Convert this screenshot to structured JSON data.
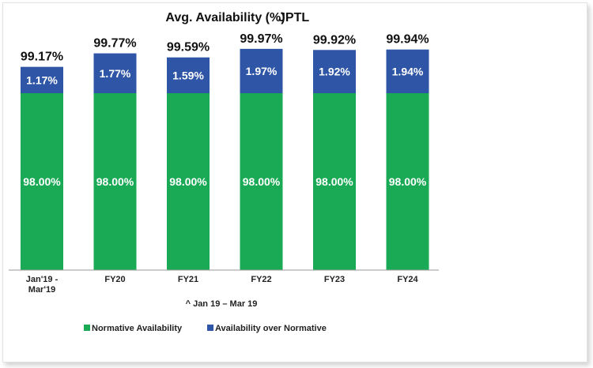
{
  "chart_data": {
    "type": "bar",
    "stacked": true,
    "title": "Avg. Availability (%)",
    "subtitle": "JPTL",
    "categories": [
      [
        "Jan'19 -",
        "Mar'19"
      ],
      [
        "FY20"
      ],
      [
        "FY21"
      ],
      [
        "FY22"
      ],
      [
        "FY23"
      ],
      [
        "FY24"
      ]
    ],
    "series": [
      {
        "name": "Normative Availability",
        "color": "#1aaa55",
        "values": [
          98.0,
          98.0,
          98.0,
          98.0,
          98.0,
          98.0
        ],
        "labels": [
          "98.00%",
          "98.00%",
          "98.00%",
          "98.00%",
          "98.00%",
          "98.00%"
        ]
      },
      {
        "name": "Availability over Normative",
        "color": "#2f56a6",
        "values": [
          1.17,
          1.77,
          1.59,
          1.97,
          1.92,
          1.94
        ],
        "labels": [
          "1.17%",
          "1.77%",
          "1.59%",
          "1.97%",
          "1.92%",
          "1.94%"
        ]
      }
    ],
    "totals": [
      99.17,
      99.77,
      99.59,
      99.97,
      99.92,
      99.94
    ],
    "total_labels": [
      "99.17%",
      "99.77%",
      "99.59%",
      "99.97%",
      "99.92%",
      "99.94%"
    ],
    "footnote": "^  Jan 19 – Mar 19",
    "legend_position": "bottom",
    "grid": false
  }
}
